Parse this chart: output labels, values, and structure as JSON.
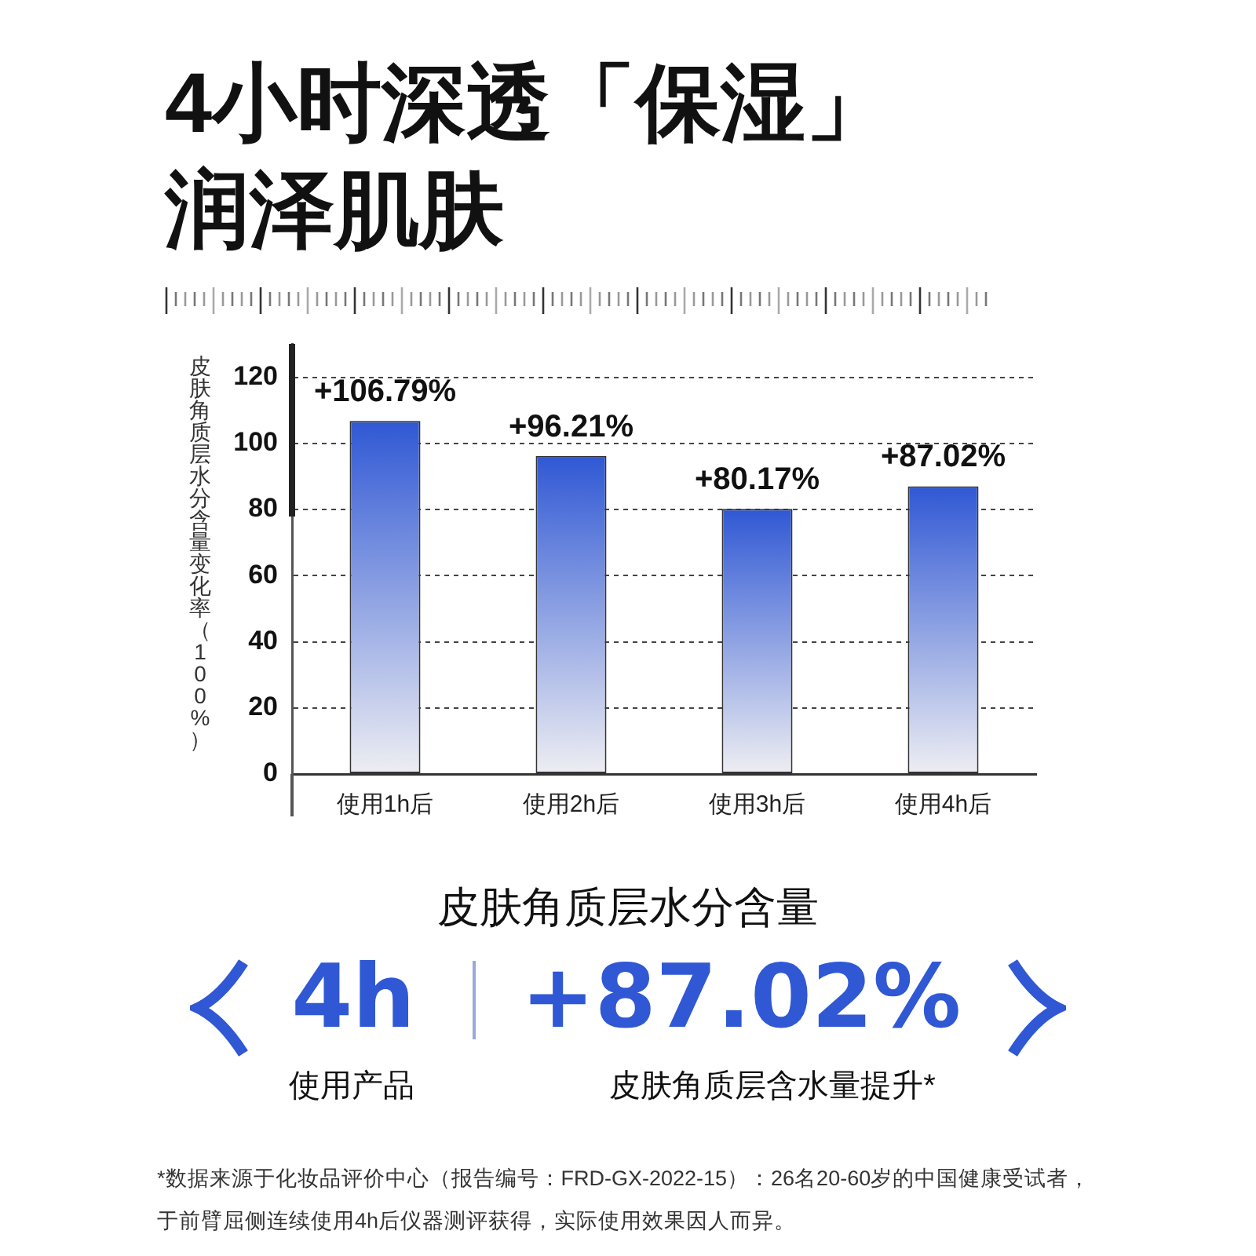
{
  "chart_data": {
    "type": "bar",
    "title": "4小时深透「保湿」润泽肌肤",
    "ylabel": "皮肤角质层水分含量变化率（100%）",
    "categories": [
      "使用1h后",
      "使用2h后",
      "使用3h后",
      "使用4h后"
    ],
    "values": [
      106.79,
      96.21,
      80.17,
      87.02
    ],
    "value_labels": [
      "+106.79%",
      "+96.21%",
      "+80.17%",
      "+87.02%"
    ],
    "color": "#3058d4",
    "ylim": [
      0,
      130
    ],
    "yticks": [
      0,
      20,
      40,
      60,
      80,
      100,
      120
    ],
    "grid": "y",
    "annotations": [
      "皮肤角质层水分含量",
      "4h",
      "+87.02%",
      "使用产品",
      "皮肤角质层含水量提升*",
      "*数据来源于化妆品评价中心（报告编号：FRD-GX-2022-15）：26名20-60岁的中国健康受试者，于前臂屈侧连续使用4h后仪器测评获得，实际使用效果因人而异。"
    ]
  }
}
